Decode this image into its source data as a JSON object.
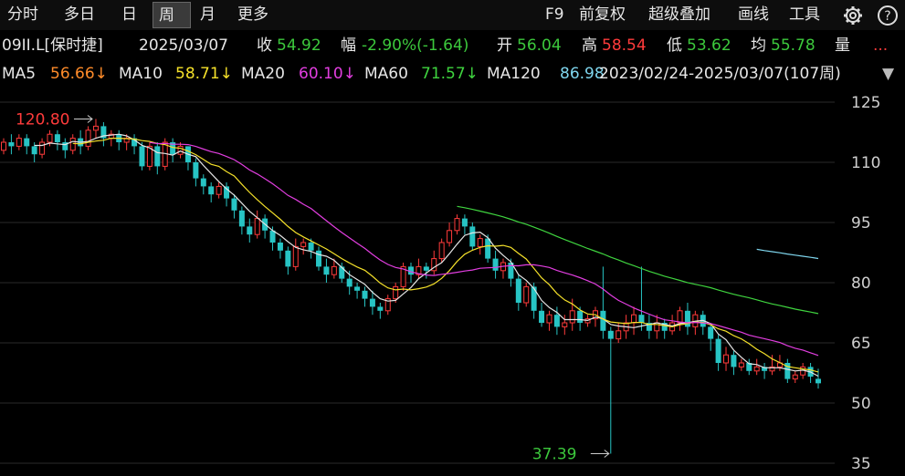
{
  "toolbar": {
    "tabs": [
      "分时",
      "多日",
      "日",
      "周",
      "月",
      "更多"
    ],
    "active_tab": "周",
    "tools": [
      "F9",
      "前复权",
      "超级叠加",
      "画线",
      "工具"
    ],
    "icons": [
      "gear-icon",
      "help-icon"
    ]
  },
  "quote": {
    "symbol": "09II.L[保时捷]",
    "date": "2025/03/07",
    "close_label": "收",
    "close": "54.92",
    "change_label": "幅",
    "change": "-2.90%(-1.64)",
    "open_label": "开",
    "open": "56.04",
    "high_label": "高",
    "high": "58.54",
    "low_label": "低",
    "low": "53.62",
    "avg_label": "均",
    "avg": "55.78",
    "vol_label": "量",
    "more": "...",
    "dropdown": "▼"
  },
  "ma": {
    "ma5_label": "MA5",
    "ma5": "56.66↓",
    "ma10_label": "MA10",
    "ma10": "58.71↓",
    "ma20_label": "MA20",
    "ma20": "60.10↓",
    "ma60_label": "MA60",
    "ma60": "71.57↓",
    "ma120_label": "MA120",
    "ma120": "86.98",
    "range": "2023/02/24-2025/03/07(107周)"
  },
  "colors": {
    "up": "#ff3b3b",
    "down": "#27c4c4",
    "ma5": "#e6e6e6",
    "ma10": "#f5e12a",
    "ma20": "#e23ee0",
    "ma60": "#3fd43f",
    "ma120": "#7fd6ee",
    "grid": "#2a2a2a"
  },
  "chart_data": {
    "type": "candlestick",
    "ylim": [
      35,
      125
    ],
    "y_ticks": [
      "125",
      "110",
      "95",
      "80",
      "65",
      "50",
      "35"
    ],
    "y_tick_values": [
      125,
      110,
      95,
      80,
      65,
      50,
      35
    ],
    "high_annotation": "120.80",
    "high_value": 120.8,
    "high_index": 12,
    "low_annotation": "37.39",
    "low_value": 37.39,
    "low_index": 79,
    "candles": [
      [
        113,
        115,
        112,
        116
      ],
      [
        115,
        114,
        112,
        117
      ],
      [
        114,
        116,
        113,
        117
      ],
      [
        116,
        114,
        112,
        117
      ],
      [
        114,
        112,
        110,
        115
      ],
      [
        112,
        115,
        111,
        116
      ],
      [
        115,
        117,
        114,
        118
      ],
      [
        117,
        115,
        113,
        118
      ],
      [
        115,
        113,
        111,
        116
      ],
      [
        113,
        116,
        112,
        117
      ],
      [
        116,
        114,
        112,
        118
      ],
      [
        114,
        118,
        113,
        119
      ],
      [
        118,
        119,
        116,
        120.8
      ],
      [
        119,
        116,
        114,
        120
      ],
      [
        116,
        117,
        114,
        118
      ],
      [
        117,
        115,
        113,
        118
      ],
      [
        115,
        116,
        113,
        117
      ],
      [
        116,
        114,
        112,
        117
      ],
      [
        114,
        109,
        108,
        115
      ],
      [
        109,
        114,
        108,
        115
      ],
      [
        114,
        109,
        107,
        115
      ],
      [
        109,
        115,
        108,
        116
      ],
      [
        115,
        112,
        110,
        116
      ],
      [
        112,
        114,
        111,
        115
      ],
      [
        114,
        110,
        108,
        114
      ],
      [
        110,
        106,
        104,
        111
      ],
      [
        106,
        104,
        102,
        107
      ],
      [
        104,
        102,
        100,
        105
      ],
      [
        102,
        104,
        101,
        105
      ],
      [
        104,
        101,
        99,
        105
      ],
      [
        101,
        98,
        96,
        102
      ],
      [
        98,
        94,
        92,
        99
      ],
      [
        94,
        92,
        90,
        96
      ],
      [
        92,
        96,
        91,
        98
      ],
      [
        96,
        93,
        91,
        97
      ],
      [
        93,
        90,
        88,
        94
      ],
      [
        90,
        88,
        86,
        91
      ],
      [
        88,
        84,
        82,
        89
      ],
      [
        84,
        89,
        83,
        91
      ],
      [
        89,
        90,
        87,
        91
      ],
      [
        90,
        88,
        86,
        91
      ],
      [
        88,
        84,
        83,
        89
      ],
      [
        84,
        82,
        80,
        86
      ],
      [
        82,
        84,
        81,
        86
      ],
      [
        84,
        81,
        80,
        85
      ],
      [
        81,
        79,
        77,
        83
      ],
      [
        79,
        78,
        76,
        80
      ],
      [
        78,
        76,
        74,
        79
      ],
      [
        76,
        74,
        72,
        78
      ],
      [
        74,
        73,
        71,
        75
      ],
      [
        73,
        76,
        72,
        77
      ],
      [
        76,
        79,
        75,
        80
      ],
      [
        79,
        84,
        78,
        85
      ],
      [
        84,
        82,
        80,
        85
      ],
      [
        82,
        84,
        81,
        86
      ],
      [
        84,
        83,
        81,
        85
      ],
      [
        83,
        86,
        82,
        88
      ],
      [
        86,
        90,
        85,
        91
      ],
      [
        90,
        93,
        89,
        95
      ],
      [
        93,
        96,
        92,
        97
      ],
      [
        96,
        94,
        92,
        97
      ],
      [
        94,
        89,
        88,
        95
      ],
      [
        89,
        91,
        87,
        92
      ],
      [
        91,
        86,
        85,
        92
      ],
      [
        86,
        83,
        81,
        88
      ],
      [
        83,
        85,
        81,
        86
      ],
      [
        85,
        81,
        79,
        86
      ],
      [
        81,
        75,
        73,
        82
      ],
      [
        75,
        79,
        74,
        80
      ],
      [
        79,
        73,
        71,
        80
      ],
      [
        73,
        70,
        69,
        75
      ],
      [
        70,
        72,
        68,
        73
      ],
      [
        72,
        69,
        67,
        74
      ],
      [
        69,
        70,
        67,
        72
      ],
      [
        70,
        73,
        68,
        76
      ],
      [
        73,
        70,
        68,
        74
      ],
      [
        70,
        71,
        69,
        72
      ],
      [
        71,
        73,
        69,
        74
      ],
      [
        73,
        68,
        66,
        84
      ],
      [
        68,
        66,
        37.39,
        69
      ],
      [
        66,
        68,
        65,
        70
      ],
      [
        68,
        70,
        66,
        72
      ],
      [
        70,
        72,
        67,
        74
      ],
      [
        72,
        70,
        68,
        84
      ],
      [
        70,
        68,
        66,
        72
      ],
      [
        68,
        70,
        66,
        72
      ],
      [
        70,
        68,
        66,
        71
      ],
      [
        68,
        70,
        67,
        72
      ],
      [
        70,
        73,
        68,
        74
      ],
      [
        73,
        69,
        67,
        75
      ],
      [
        69,
        72,
        67,
        73
      ],
      [
        72,
        69,
        67,
        73
      ],
      [
        69,
        66,
        63,
        70
      ],
      [
        66,
        60,
        58,
        67
      ],
      [
        60,
        62,
        58,
        64
      ],
      [
        62,
        59,
        57,
        63
      ],
      [
        59,
        60,
        58,
        61
      ],
      [
        60,
        58,
        57,
        61
      ],
      [
        58,
        59,
        57,
        61
      ],
      [
        59,
        58,
        56,
        60
      ],
      [
        58,
        59,
        57,
        62
      ],
      [
        59,
        60,
        58,
        62
      ],
      [
        60,
        56,
        55,
        61
      ],
      [
        56,
        57,
        55,
        58
      ],
      [
        57,
        59,
        56,
        60
      ],
      [
        59,
        56.58,
        55,
        60
      ],
      [
        56.04,
        54.92,
        53.62,
        58.54
      ]
    ],
    "ma60_start_index": 59,
    "ma120_start_index": 98
  }
}
